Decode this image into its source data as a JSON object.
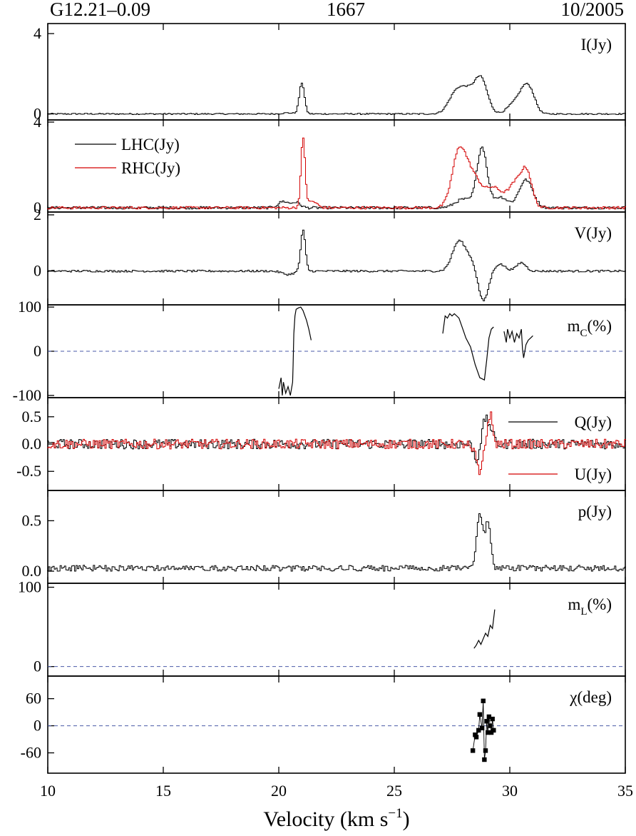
{
  "header": {
    "source": "G12.21–0.09",
    "frequency": "1667",
    "epoch": "10/2005"
  },
  "colors": {
    "black_series": "#000000",
    "red_series": "#d40000",
    "zero_line": "#4a5aa8"
  },
  "chart_data": {
    "type": "line",
    "xlabel": {
      "main": "Velocity (km s",
      "sup": "−1",
      "end": ")"
    },
    "xlim": [
      10,
      35
    ],
    "xticks": [
      10,
      15,
      20,
      25,
      30,
      35
    ],
    "xtick_labels": [
      "10",
      "15",
      "20",
      "25",
      "30",
      "35"
    ],
    "panels": [
      {
        "id": "I",
        "label": "I(Jy)",
        "label_pos": "top-right",
        "style": "step",
        "ylim": [
          -0.3,
          4.5
        ],
        "yticks": [
          0,
          4
        ],
        "ytick_labels": [
          "0",
          "4"
        ],
        "series": [
          {
            "color": "black",
            "peaks": [
              [
                20.4,
                0.05,
                0.25
              ],
              [
                21.0,
                1.55,
                0.11
              ],
              [
                27.7,
                1.1,
                0.33
              ],
              [
                28.2,
                0.8,
                0.28
              ],
              [
                28.75,
                1.75,
                0.28
              ],
              [
                30.2,
                0.5,
                0.3
              ],
              [
                30.7,
                1.25,
                0.26
              ],
              [
                31.0,
                0.4,
                0.2
              ]
            ],
            "noise": 0.035
          }
        ]
      },
      {
        "id": "LR",
        "label": "",
        "style": "step",
        "ylim": [
          -0.2,
          4.1
        ],
        "yticks": [
          0,
          4
        ],
        "ytick_labels": [
          "0",
          "4"
        ],
        "legend": {
          "placement": "top-left",
          "entries": [
            {
              "name": "LHC(Jy)",
              "color": "black"
            },
            {
              "name": "RHC(Jy)",
              "color": "red"
            }
          ]
        },
        "series": [
          {
            "name": "LHC(Jy)",
            "color": "black",
            "peaks": [
              [
                20.2,
                0.3,
                0.22
              ],
              [
                20.75,
                0.25,
                0.18
              ],
              [
                28.0,
                0.4,
                0.35
              ],
              [
                28.8,
                2.8,
                0.22
              ],
              [
                29.6,
                0.5,
                0.3
              ],
              [
                30.7,
                1.3,
                0.3
              ]
            ],
            "noise": 0.06
          },
          {
            "name": "RHC(Jy)",
            "color": "red",
            "peaks": [
              [
                21.05,
                3.2,
                0.09
              ],
              [
                21.45,
                0.3,
                0.2
              ],
              [
                27.8,
                2.5,
                0.3
              ],
              [
                28.4,
                1.4,
                0.35
              ],
              [
                29.3,
                0.9,
                0.35
              ],
              [
                30.3,
                1.2,
                0.35
              ],
              [
                30.75,
                1.3,
                0.22
              ]
            ],
            "noise": 0.06
          }
        ]
      },
      {
        "id": "V",
        "label": "V(Jy)",
        "label_pos": "top-right",
        "style": "step",
        "ylim": [
          -1.2,
          2.1
        ],
        "yticks": [
          0,
          2
        ],
        "ytick_labels": [
          "0",
          "2"
        ],
        "series": [
          {
            "color": "black",
            "peaks": [
              [
                20.4,
                -0.12,
                0.25
              ],
              [
                21.05,
                1.45,
                0.1
              ],
              [
                27.8,
                1.05,
                0.28
              ],
              [
                28.35,
                0.35,
                0.25
              ],
              [
                28.85,
                -1.1,
                0.22
              ],
              [
                29.55,
                0.25,
                0.25
              ],
              [
                30.5,
                0.3,
                0.2
              ]
            ],
            "noise": 0.035
          }
        ]
      },
      {
        "id": "mC",
        "label": "m",
        "label_sub": "C",
        "label_suffix": "(%)",
        "label_pos": "top-right",
        "style": "line",
        "zero_line": true,
        "ylim": [
          -105,
          105
        ],
        "yticks": [
          -100,
          0,
          100
        ],
        "ytick_labels": [
          "-100",
          "0",
          "100"
        ],
        "segments": [
          {
            "x": [
              20.0,
              20.1,
              20.15,
              20.2,
              20.3,
              20.4,
              20.5,
              20.6,
              20.62,
              20.65,
              20.7,
              20.75,
              20.85,
              20.95,
              21.05,
              21.2,
              21.3,
              21.4
            ],
            "y": [
              -85,
              -60,
              -100,
              -70,
              -95,
              -80,
              -100,
              -70,
              -30,
              40,
              80,
              95,
              98,
              100,
              92,
              70,
              50,
              25
            ]
          },
          {
            "x": [
              27.1,
              27.2,
              27.3,
              27.4,
              27.5,
              27.6,
              27.7,
              27.8,
              27.9,
              28.0,
              28.1,
              28.3,
              28.5,
              28.7,
              28.9,
              29.0,
              29.1,
              29.2,
              29.3
            ],
            "y": [
              40,
              80,
              75,
              85,
              80,
              85,
              80,
              75,
              60,
              45,
              30,
              10,
              -30,
              -60,
              -65,
              -20,
              30,
              50,
              55
            ]
          },
          {
            "x": [
              29.75,
              29.85,
              29.9,
              30.0,
              30.1,
              30.2,
              30.3,
              30.4,
              30.5,
              30.55,
              30.6,
              30.7,
              30.8,
              30.9,
              31.0
            ],
            "y": [
              45,
              20,
              50,
              30,
              45,
              20,
              40,
              30,
              50,
              5,
              -15,
              15,
              25,
              30,
              35
            ]
          }
        ]
      },
      {
        "id": "QU",
        "label": "",
        "style": "step",
        "ylim": [
          -0.85,
          0.85
        ],
        "yticks": [
          -0.5,
          0.0,
          0.5
        ],
        "ytick_labels": [
          "-0.5",
          "0.0",
          "0.5"
        ],
        "legend": {
          "placement": "right",
          "entries": [
            {
              "name": "Q(Jy)",
              "color": "black"
            },
            {
              "name": "U(Jy)",
              "color": "red"
            }
          ]
        },
        "series": [
          {
            "name": "Q(Jy)",
            "color": "black",
            "peaks": [
              [
                28.55,
                -0.3,
                0.1
              ],
              [
                28.95,
                0.45,
                0.12
              ],
              [
                29.2,
                0.25,
                0.1
              ]
            ],
            "noise": 0.09
          },
          {
            "name": "U(Jy)",
            "color": "red",
            "peaks": [
              [
                28.7,
                -0.6,
                0.1
              ],
              [
                29.15,
                0.55,
                0.1
              ],
              [
                28.4,
                -0.15,
                0.1
              ]
            ],
            "noise": 0.09
          }
        ]
      },
      {
        "id": "p",
        "label": "p(Jy)",
        "label_pos": "top-right",
        "style": "step",
        "ylim": [
          -0.12,
          0.8
        ],
        "yticks": [
          0.0,
          0.5
        ],
        "ytick_labels": [
          "0.0",
          "0.5"
        ],
        "series": [
          {
            "color": "black",
            "peaks": [
              [
                28.7,
                0.55,
                0.12
              ],
              [
                29.05,
                0.45,
                0.12
              ]
            ],
            "noise": 0.045,
            "abs": true
          }
        ]
      },
      {
        "id": "mL",
        "label": "m",
        "label_sub": "L",
        "label_suffix": "(%)",
        "label_pos": "top-right",
        "style": "line",
        "zero_line": true,
        "ylim": [
          -12,
          105
        ],
        "yticks": [
          0,
          100
        ],
        "ytick_labels": [
          "0",
          "100"
        ],
        "segments": [
          {
            "x": [
              28.45,
              28.55,
              28.65,
              28.75,
              28.85,
              28.95,
              29.05,
              29.15,
              29.25,
              29.35
            ],
            "y": [
              23,
              27,
              33,
              28,
              35,
              42,
              38,
              52,
              48,
              72
            ]
          }
        ]
      },
      {
        "id": "chi",
        "label": "χ(deg)",
        "label_pos": "top-right",
        "style": "points",
        "zero_line": true,
        "ylim": [
          -105,
          110
        ],
        "yticks": [
          -60,
          0,
          60
        ],
        "ytick_labels": [
          "-60",
          "0",
          "60"
        ],
        "points": {
          "x": [
            28.4,
            28.5,
            28.55,
            28.65,
            28.7,
            28.8,
            28.85,
            28.9,
            28.95,
            29.0,
            29.05,
            29.1,
            29.15,
            29.2,
            29.25,
            29.3
          ],
          "y": [
            -55,
            -20,
            -25,
            -10,
            25,
            -5,
            55,
            -75,
            -55,
            10,
            -15,
            20,
            0,
            -15,
            15,
            -10
          ]
        }
      }
    ]
  }
}
